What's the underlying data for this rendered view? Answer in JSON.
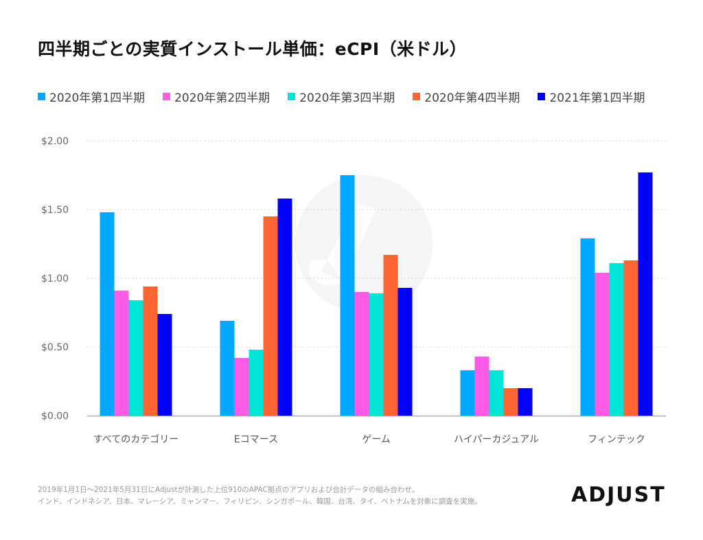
{
  "chart_data": {
    "type": "bar",
    "title": "四半期ごとの実質インストール単価：eCPI（米ドル）",
    "xlabel": "",
    "ylabel": "",
    "ylim": [
      0,
      2.0
    ],
    "yticks": [
      0,
      0.5,
      1.0,
      1.5,
      2.0
    ],
    "ytick_labels": [
      "$0.00",
      "$0.50",
      "$1.00",
      "$1.50",
      "$2.00"
    ],
    "grid": true,
    "legend_position": "top",
    "categories": [
      "すべてのカテゴリー",
      "Eコマース",
      "ゲーム",
      "ハイパーカジュアル",
      "フィンテック"
    ],
    "series": [
      {
        "name": "2020年第1四半期",
        "color": "#00a8ff",
        "values": [
          1.48,
          0.69,
          1.75,
          0.33,
          1.29
        ]
      },
      {
        "name": "2020年第2四半期",
        "color": "#ff5ae6",
        "values": [
          0.91,
          0.42,
          0.9,
          0.43,
          1.04
        ]
      },
      {
        "name": "2020年第3四半期",
        "color": "#00e5d8",
        "values": [
          0.84,
          0.48,
          0.89,
          0.33,
          1.11
        ]
      },
      {
        "name": "2020年第4四半期",
        "color": "#ff6432",
        "values": [
          0.94,
          1.45,
          1.17,
          0.2,
          1.13
        ]
      },
      {
        "name": "2021年第1四半期",
        "color": "#0000ff",
        "values": [
          0.74,
          1.58,
          0.93,
          0.2,
          1.77
        ]
      }
    ]
  },
  "footnote": {
    "line1": "2019年1月1日～2021年5月31日にAdjustが計測した上位910のAPAC拠点のアプリおよび合計データの組み合わせ。",
    "line2": "インド、インドネシア、日本、マレーシア、ミャンマー、フィリピン、シンガポール、韓国、台湾、タイ、ベトナムを対象に調査を実施。"
  },
  "brand": {
    "name": "ADJUST"
  }
}
